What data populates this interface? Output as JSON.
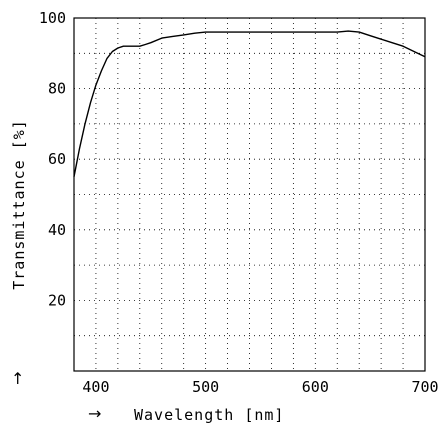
{
  "chart_data": {
    "type": "line",
    "xlabel": "Wavelength [nm]",
    "ylabel": "Transmittance [%]",
    "xlim": [
      380,
      700
    ],
    "ylim": [
      0,
      100
    ],
    "x_ticks": [
      400,
      500,
      600,
      700
    ],
    "y_ticks": [
      20,
      40,
      60,
      80,
      100
    ],
    "x_minor_step": 20,
    "y_minor_step": 10,
    "grid": true,
    "x_arrow": "→",
    "y_arrow": "↑",
    "series": [
      {
        "x": [
          380,
          385,
          390,
          395,
          400,
          405,
          410,
          415,
          420,
          425,
          430,
          435,
          440,
          445,
          450,
          460,
          470,
          480,
          490,
          500,
          510,
          520,
          540,
          560,
          580,
          600,
          610,
          620,
          630,
          640,
          650,
          660,
          670,
          680,
          690,
          700
        ],
        "y": [
          55,
          63,
          70,
          76,
          81,
          85,
          88.5,
          90.5,
          91.5,
          92,
          92,
          92,
          92,
          92.5,
          93,
          94.3,
          94.8,
          95.2,
          95.7,
          96,
          96,
          96,
          96,
          96,
          96,
          96,
          96,
          96,
          96.3,
          96,
          95,
          94,
          93,
          92,
          90.5,
          89
        ]
      }
    ]
  }
}
